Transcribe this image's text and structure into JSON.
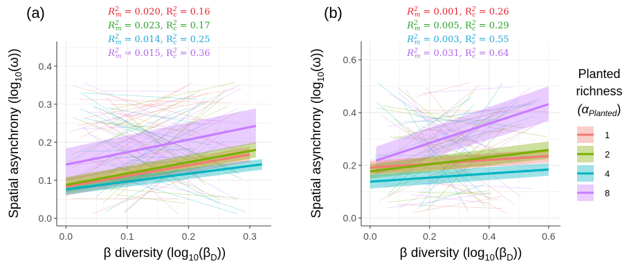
{
  "figure": {
    "legend": {
      "title_lines": [
        "Planted",
        "richness"
      ],
      "subtitle_prefix": "(α",
      "subtitle_sub": "Planted",
      "subtitle_suffix": ")",
      "items": [
        {
          "label": "1",
          "color": "#f07b72"
        },
        {
          "label": "2",
          "color": "#7cae00"
        },
        {
          "label": "4",
          "color": "#00b3c0"
        },
        {
          "label": "8",
          "color": "#c77cff"
        }
      ]
    }
  },
  "chart_data": [
    {
      "type": "line",
      "panel": "(a)",
      "ylabel_prefix": "Spatial asynchrony (log",
      "ylabel_sub": "10",
      "ylabel_suffix": "(ω))",
      "xlabel_prefix": "β diversity (log",
      "xlabel_sub": "10",
      "xlabel_mid": "(β",
      "xlabel_sub2": "D",
      "xlabel_suffix": "))",
      "xlim": [
        -0.015,
        0.335
      ],
      "ylim": [
        -0.02,
        0.465
      ],
      "xticks": [
        {
          "v": 0.0,
          "label": "0.0"
        },
        {
          "v": 0.1,
          "label": "0.1"
        },
        {
          "v": 0.2,
          "label": "0.2"
        },
        {
          "v": 0.3,
          "label": "0.3"
        }
      ],
      "yticks": [
        {
          "v": 0.0,
          "label": "0.0"
        },
        {
          "v": 0.1,
          "label": "0.1"
        },
        {
          "v": 0.2,
          "label": "0.2"
        },
        {
          "v": 0.3,
          "label": "0.3"
        },
        {
          "v": 0.4,
          "label": "0.4"
        }
      ],
      "grid": true,
      "r2": [
        {
          "rm": "0.020",
          "rc": "0.16",
          "color": "#e8202a"
        },
        {
          "rm": "0.023",
          "rc": "0.17",
          "color": "#2aa02a"
        },
        {
          "rm": "0.014",
          "rc": "0.25",
          "color": "#1fa8d8"
        },
        {
          "rm": "0.015",
          "rc": "0.36",
          "color": "#b266e6"
        }
      ],
      "series": [
        {
          "name": "1",
          "x": [
            0.0,
            0.3
          ],
          "y": [
            0.083,
            0.168
          ],
          "lo": [
            0.06,
            0.148
          ],
          "hi": [
            0.106,
            0.188
          ]
        },
        {
          "name": "2",
          "x": [
            0.0,
            0.31
          ],
          "y": [
            0.088,
            0.18
          ],
          "lo": [
            0.068,
            0.16
          ],
          "hi": [
            0.108,
            0.2
          ]
        },
        {
          "name": "4",
          "x": [
            0.0,
            0.32
          ],
          "y": [
            0.076,
            0.142
          ],
          "lo": [
            0.062,
            0.128
          ],
          "hi": [
            0.09,
            0.156
          ]
        },
        {
          "name": "8",
          "x": [
            0.0,
            0.31
          ],
          "y": [
            0.141,
            0.243
          ],
          "lo": [
            0.098,
            0.197
          ],
          "hi": [
            0.184,
            0.289
          ]
        }
      ]
    },
    {
      "type": "line",
      "panel": "(b)",
      "ylabel_prefix": "Spatial asynchrony (log",
      "ylabel_sub": "10",
      "ylabel_suffix": "(ω))",
      "xlabel_prefix": "β diversity (log",
      "xlabel_sub": "10",
      "xlabel_mid": "(β",
      "xlabel_sub2": "D",
      "xlabel_suffix": "))",
      "xlim": [
        -0.03,
        0.64
      ],
      "ylim": [
        -0.03,
        0.67
      ],
      "xticks": [
        {
          "v": 0.0,
          "label": "0.0"
        },
        {
          "v": 0.2,
          "label": "0.2"
        },
        {
          "v": 0.4,
          "label": "0.4"
        },
        {
          "v": 0.6,
          "label": "0.6"
        }
      ],
      "yticks": [
        {
          "v": 0.0,
          "label": "0.0"
        },
        {
          "v": 0.2,
          "label": "0.2"
        },
        {
          "v": 0.4,
          "label": "0.4"
        },
        {
          "v": 0.6,
          "label": "0.6"
        }
      ],
      "grid": true,
      "r2": [
        {
          "rm": "0.001",
          "rc": "0.26",
          "color": "#e8202a"
        },
        {
          "rm": "0.005",
          "rc": "0.29",
          "color": "#2aa02a"
        },
        {
          "rm": "0.003",
          "rc": "0.55",
          "color": "#1fa8d8"
        },
        {
          "rm": "0.031",
          "rc": "0.64",
          "color": "#b266e6"
        }
      ],
      "series": [
        {
          "name": "1",
          "x": [
            0.0,
            0.6
          ],
          "y": [
            0.191,
            0.235
          ],
          "lo": [
            0.165,
            0.21
          ],
          "hi": [
            0.217,
            0.26
          ]
        },
        {
          "name": "2",
          "x": [
            0.0,
            0.6
          ],
          "y": [
            0.177,
            0.258
          ],
          "lo": [
            0.15,
            0.225
          ],
          "hi": [
            0.204,
            0.291
          ]
        },
        {
          "name": "4",
          "x": [
            0.0,
            0.6
          ],
          "y": [
            0.138,
            0.184
          ],
          "lo": [
            0.112,
            0.16
          ],
          "hi": [
            0.164,
            0.208
          ]
        },
        {
          "name": "8",
          "x": [
            0.02,
            0.6
          ],
          "y": [
            0.218,
            0.432
          ],
          "lo": [
            0.165,
            0.368
          ],
          "hi": [
            0.271,
            0.5
          ]
        }
      ]
    }
  ]
}
